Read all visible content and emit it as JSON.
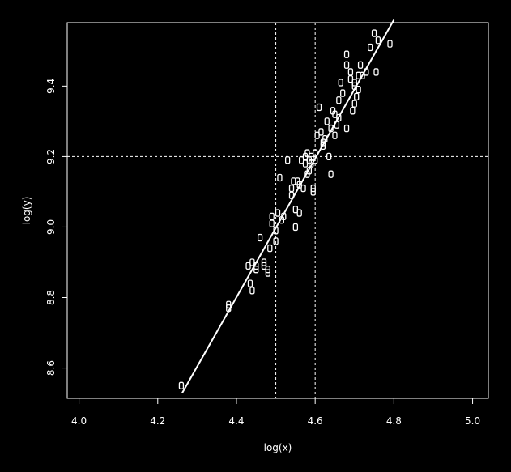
{
  "chart_data": {
    "type": "scatter",
    "title": "",
    "xlabel": "log(x)",
    "ylabel": "log(y)",
    "xlim": [
      3.97,
      5.04
    ],
    "ylim": [
      8.514,
      9.58
    ],
    "xticks": [
      4.0,
      4.2,
      4.4,
      4.6,
      4.8,
      5.0
    ],
    "xtick_labels": [
      "4.0",
      "4.2",
      "4.4",
      "4.6",
      "4.8",
      "5.0"
    ],
    "yticks": [
      8.6,
      8.8,
      9.0,
      9.2,
      9.4
    ],
    "ytick_labels": [
      "8.6",
      "8.8",
      "9.0",
      "9.2",
      "9.4"
    ],
    "grid": false,
    "reference_lines": {
      "vertical_x": [
        4.5,
        4.6
      ],
      "horizontal_y": [
        9.0,
        9.2
      ]
    },
    "fit_line": {
      "x": [
        4.262,
        4.8
      ],
      "y": [
        8.529,
        9.588
      ]
    },
    "marker": "rectangle",
    "colors": {
      "background": "#000000",
      "foreground": "#ffffff"
    },
    "points": {
      "x": [
        4.26,
        4.38,
        4.38,
        4.43,
        4.435,
        4.44,
        4.45,
        4.45,
        4.46,
        4.47,
        4.48,
        4.48,
        4.485,
        4.49,
        4.49,
        4.5,
        4.5,
        4.505,
        4.51,
        4.515,
        4.52,
        4.53,
        4.54,
        4.54,
        4.55,
        4.55,
        4.56,
        4.56,
        4.565,
        4.57,
        4.575,
        4.58,
        4.58,
        4.585,
        4.59,
        4.59,
        4.595,
        4.6,
        4.6,
        4.605,
        4.61,
        4.615,
        4.62,
        4.625,
        4.63,
        4.635,
        4.64,
        4.64,
        4.645,
        4.65,
        4.655,
        4.66,
        4.665,
        4.67,
        4.68,
        4.68,
        4.69,
        4.69,
        4.695,
        4.7,
        4.7,
        4.705,
        4.71,
        4.71,
        4.715,
        4.72,
        4.73,
        4.74,
        4.75,
        4.755,
        4.76,
        4.79,
        4.68,
        4.66,
        4.65,
        4.7,
        4.585,
        4.44,
        4.47,
        4.545,
        4.595,
        4.62,
        4.555,
        4.575
      ],
      "y": [
        8.55,
        8.78,
        8.77,
        8.89,
        8.84,
        8.82,
        8.88,
        8.89,
        8.97,
        8.89,
        8.88,
        8.87,
        8.94,
        9.01,
        9.03,
        8.99,
        8.96,
        9.04,
        9.14,
        9.02,
        9.03,
        9.19,
        9.09,
        9.11,
        9.0,
        9.05,
        9.12,
        9.04,
        9.19,
        9.11,
        9.2,
        9.15,
        9.21,
        9.19,
        9.18,
        9.2,
        9.1,
        9.19,
        9.21,
        9.26,
        9.34,
        9.27,
        9.23,
        9.25,
        9.3,
        9.2,
        9.15,
        9.28,
        9.33,
        9.32,
        9.29,
        9.31,
        9.41,
        9.38,
        9.49,
        9.46,
        9.44,
        9.42,
        9.33,
        9.35,
        9.41,
        9.37,
        9.43,
        9.39,
        9.46,
        9.43,
        9.44,
        9.51,
        9.55,
        9.44,
        9.53,
        9.52,
        9.28,
        9.36,
        9.26,
        9.4,
        9.16,
        8.9,
        8.9,
        9.13,
        9.11,
        9.24,
        9.13,
        9.18
      ]
    }
  }
}
